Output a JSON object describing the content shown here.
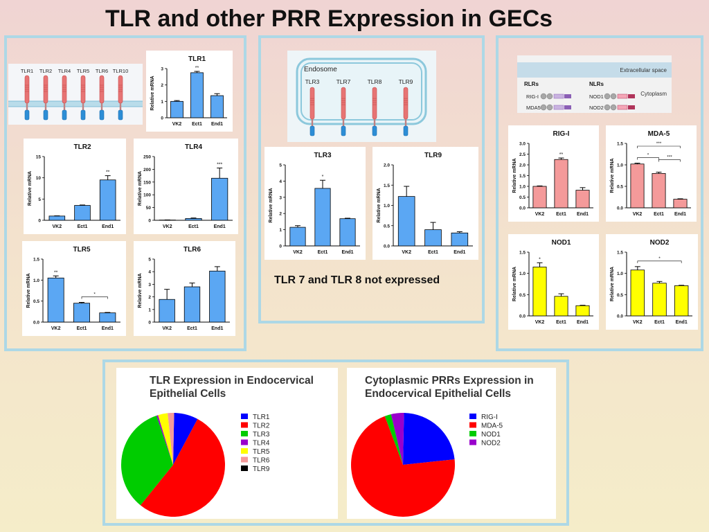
{
  "title": "TLR and other PRR Expression in GECs",
  "note_tlr78": "TLR 7 and TLR 8  not expressed",
  "colors": {
    "bar_blue": "#5ba7f3",
    "bar_pink": "#f49a9a",
    "bar_yellow": "#ffff00"
  },
  "diagrams": {
    "membrane_receptors": [
      "TLR1",
      "TLR2",
      "TLR4",
      "TLR5",
      "TLR6",
      "TLR10"
    ],
    "endosome_title": "Endosome",
    "endosome_receptors": [
      "TLR3",
      "TLR7",
      "TLR8",
      "TLR9"
    ],
    "cyto": {
      "extracellular": "Extracellular space",
      "rlrs": "RLRs",
      "nlrs": "NLRs",
      "cytoplasm": "Cytoplasm",
      "rlr_items": [
        "RIG-I",
        "MDA5"
      ],
      "nlr_items": [
        "NOD1",
        "NOD2"
      ]
    }
  },
  "chart_data": [
    {
      "id": "tlr1",
      "type": "bar",
      "title": "TLR1",
      "ylabel": "Relative mRNA",
      "categories": [
        "VK2",
        "Ect1",
        "End1"
      ],
      "values": [
        1.0,
        2.75,
        1.35
      ],
      "errors": [
        0.05,
        0.08,
        0.12
      ],
      "ylim": [
        0,
        3
      ],
      "yticks": [
        0,
        1,
        2,
        3
      ],
      "annotations": [
        {
          "category": "Ect1",
          "text": "**"
        }
      ],
      "color": "#5ba7f3"
    },
    {
      "id": "tlr2",
      "type": "bar",
      "title": "TLR2",
      "ylabel": "Relative mRNA",
      "categories": [
        "VK2",
        "Ect1",
        "End1"
      ],
      "values": [
        1.0,
        3.5,
        9.5
      ],
      "errors": [
        0.05,
        0.1,
        1.0
      ],
      "ylim": [
        0,
        15
      ],
      "yticks": [
        0,
        5,
        10,
        15
      ],
      "annotations": [
        {
          "category": "End1",
          "text": "**"
        }
      ],
      "color": "#5ba7f3"
    },
    {
      "id": "tlr4",
      "type": "bar",
      "title": "TLR4",
      "ylabel": "Relative mRNA",
      "categories": [
        "VK2",
        "Ect1",
        "End1"
      ],
      "values": [
        1,
        7,
        165
      ],
      "errors": [
        0.5,
        2,
        40
      ],
      "ylim": [
        0,
        250
      ],
      "yticks": [
        0,
        50,
        100,
        150,
        200,
        250
      ],
      "annotations": [
        {
          "category": "End1",
          "text": "***"
        }
      ],
      "color": "#5ba7f3"
    },
    {
      "id": "tlr5",
      "type": "bar",
      "title": "TLR5",
      "ylabel": "Relative mRNA",
      "categories": [
        "VK2",
        "Ect1",
        "End1"
      ],
      "values": [
        1.05,
        0.45,
        0.22
      ],
      "errors": [
        0.05,
        0.02,
        0.01
      ],
      "ylim": [
        0,
        1.5
      ],
      "yticks": [
        0.0,
        0.5,
        1.0,
        1.5
      ],
      "annotations": [
        {
          "category": "VK2",
          "text": "**"
        }
      ],
      "brackets": [
        {
          "from": "Ect1",
          "to": "End1",
          "text": "*"
        }
      ],
      "color": "#5ba7f3"
    },
    {
      "id": "tlr6",
      "type": "bar",
      "title": "TLR6",
      "ylabel": "Relative mRNA",
      "categories": [
        "VK2",
        "Ect1",
        "End1"
      ],
      "values": [
        1.8,
        2.8,
        4.05
      ],
      "errors": [
        0.8,
        0.3,
        0.35
      ],
      "ylim": [
        0,
        5
      ],
      "yticks": [
        0,
        1,
        2,
        3,
        4,
        5
      ],
      "color": "#5ba7f3"
    },
    {
      "id": "tlr3",
      "type": "bar",
      "title": "TLR3",
      "ylabel": "Relative mRNA",
      "categories": [
        "VK2",
        "Ect1",
        "End1"
      ],
      "values": [
        1.15,
        3.55,
        1.68
      ],
      "errors": [
        0.1,
        0.5,
        0.03
      ],
      "ylim": [
        0,
        5
      ],
      "yticks": [
        0,
        1,
        2,
        3,
        4,
        5
      ],
      "annotations": [
        {
          "category": "Ect1",
          "text": "*"
        }
      ],
      "color": "#5ba7f3"
    },
    {
      "id": "tlr9",
      "type": "bar",
      "title": "TLR9",
      "ylabel": "Relative mRNA",
      "categories": [
        "VK2",
        "Ect1",
        "End1"
      ],
      "values": [
        1.22,
        0.4,
        0.32
      ],
      "errors": [
        0.25,
        0.18,
        0.03
      ],
      "ylim": [
        0,
        2.0
      ],
      "yticks": [
        0.0,
        0.5,
        1.0,
        1.5,
        2.0
      ],
      "color": "#5ba7f3"
    },
    {
      "id": "rigi",
      "type": "bar",
      "title": "RIG-I",
      "ylabel": "Relative mRNA",
      "categories": [
        "VK2",
        "Ect1",
        "End1"
      ],
      "values": [
        1.0,
        2.25,
        0.82
      ],
      "errors": [
        0.02,
        0.07,
        0.12
      ],
      "ylim": [
        0,
        3.0
      ],
      "yticks": [
        0.0,
        0.5,
        1.0,
        1.5,
        2.0,
        2.5,
        3.0
      ],
      "annotations": [
        {
          "category": "Ect1",
          "text": "**"
        }
      ],
      "color": "#f49a9a"
    },
    {
      "id": "mda5",
      "type": "bar",
      "title": "MDA-5",
      "ylabel": "Relative mRNA",
      "categories": [
        "VK2",
        "Ect1",
        "End1"
      ],
      "values": [
        1.02,
        0.8,
        0.2
      ],
      "errors": [
        0.02,
        0.03,
        0.01
      ],
      "ylim": [
        0,
        1.5
      ],
      "yticks": [
        0.0,
        0.5,
        1.0,
        1.5
      ],
      "brackets": [
        {
          "from": "VK2",
          "to": "Ect1",
          "text": "*"
        },
        {
          "from": "Ect1",
          "to": "End1",
          "text": "***"
        },
        {
          "from": "VK2",
          "to": "End1",
          "text": "***"
        }
      ],
      "color": "#f49a9a"
    },
    {
      "id": "nod1",
      "type": "bar",
      "title": "NOD1",
      "ylabel": "Relative mRNA",
      "categories": [
        "VK2",
        "Ect1",
        "End1"
      ],
      "values": [
        1.15,
        0.46,
        0.24
      ],
      "errors": [
        0.1,
        0.06,
        0.01
      ],
      "ylim": [
        0,
        1.5
      ],
      "yticks": [
        0.0,
        0.5,
        1.0,
        1.5
      ],
      "annotations": [
        {
          "category": "VK2",
          "text": "*"
        }
      ],
      "color": "#ffff00"
    },
    {
      "id": "nod2",
      "type": "bar",
      "title": "NOD2",
      "ylabel": "Relative mRNA",
      "categories": [
        "VK2",
        "Ect1",
        "End1"
      ],
      "values": [
        1.08,
        0.77,
        0.71
      ],
      "errors": [
        0.08,
        0.04,
        0.01
      ],
      "ylim": [
        0,
        1.5
      ],
      "yticks": [
        0.0,
        0.5,
        1.0,
        1.5
      ],
      "brackets": [
        {
          "from": "VK2",
          "to": "End1",
          "text": "*"
        }
      ],
      "color": "#ffff00"
    },
    {
      "id": "pie_tlr",
      "type": "pie",
      "title": "TLR Expression in Endocervical Epithelial Cells",
      "labels": [
        "TLR1",
        "TLR2",
        "TLR3",
        "TLR4",
        "TLR5",
        "TLR6",
        "TLR9"
      ],
      "values": [
        7.5,
        53,
        34,
        0.5,
        3,
        2,
        0
      ],
      "colors": [
        "#0000ff",
        "#ff0000",
        "#00cc00",
        "#9900cc",
        "#ffff00",
        "#f49a9a",
        "#000000"
      ],
      "legend": "right"
    },
    {
      "id": "pie_cyto",
      "type": "pie",
      "title": "Cytoplasmic PRRs Expression in Endocervical Epithelial Cells",
      "labels": [
        "RIG-I",
        "MDA-5",
        "NOD1",
        "NOD2"
      ],
      "values": [
        23,
        71,
        2,
        4
      ],
      "colors": [
        "#0000ff",
        "#ff0000",
        "#00cc00",
        "#9900cc"
      ],
      "legend": "right"
    }
  ]
}
